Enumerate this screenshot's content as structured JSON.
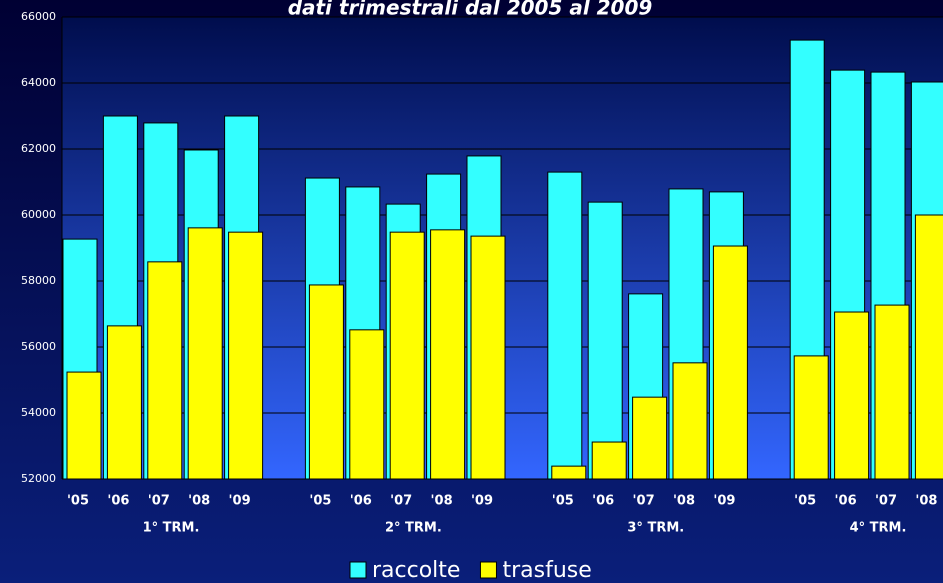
{
  "chart_data": {
    "type": "bar",
    "title": "dati trimestrali dal 2005 al 2009",
    "categories": [
      "'05",
      "'06",
      "'07",
      "'08",
      "'09",
      null,
      "'05",
      "'06",
      "'07",
      "'08",
      "'09",
      null,
      "'05",
      "'06",
      "'07",
      "'08",
      "'09",
      null,
      "'05",
      "'06",
      "'07",
      "'08"
    ],
    "group_labels": [
      "1° TRM.",
      "2° TRM.",
      "3° TRM.",
      "4° TRM."
    ],
    "series": [
      {
        "name": "raccolte",
        "color": "#33ffff",
        "values": [
          59270,
          63000,
          62790,
          61970,
          63000,
          null,
          61120,
          60850,
          60330,
          61240,
          61790,
          null,
          61300,
          60390,
          57610,
          60790,
          60700,
          null,
          65300,
          64390,
          64330,
          64030
        ]
      },
      {
        "name": "trasfuse",
        "color": "#ffff00",
        "values": [
          55240,
          56640,
          58580,
          59610,
          59480,
          null,
          57880,
          56520,
          59480,
          59550,
          59360,
          null,
          52390,
          53120,
          54480,
          55520,
          59060,
          null,
          55730,
          57060,
          57270,
          60000
        ]
      }
    ],
    "ylim": [
      52000,
      66000
    ],
    "yticks": [
      52000,
      54000,
      56000,
      58000,
      60000,
      62000,
      64000,
      66000
    ],
    "grid": true,
    "legend": "bottom"
  }
}
